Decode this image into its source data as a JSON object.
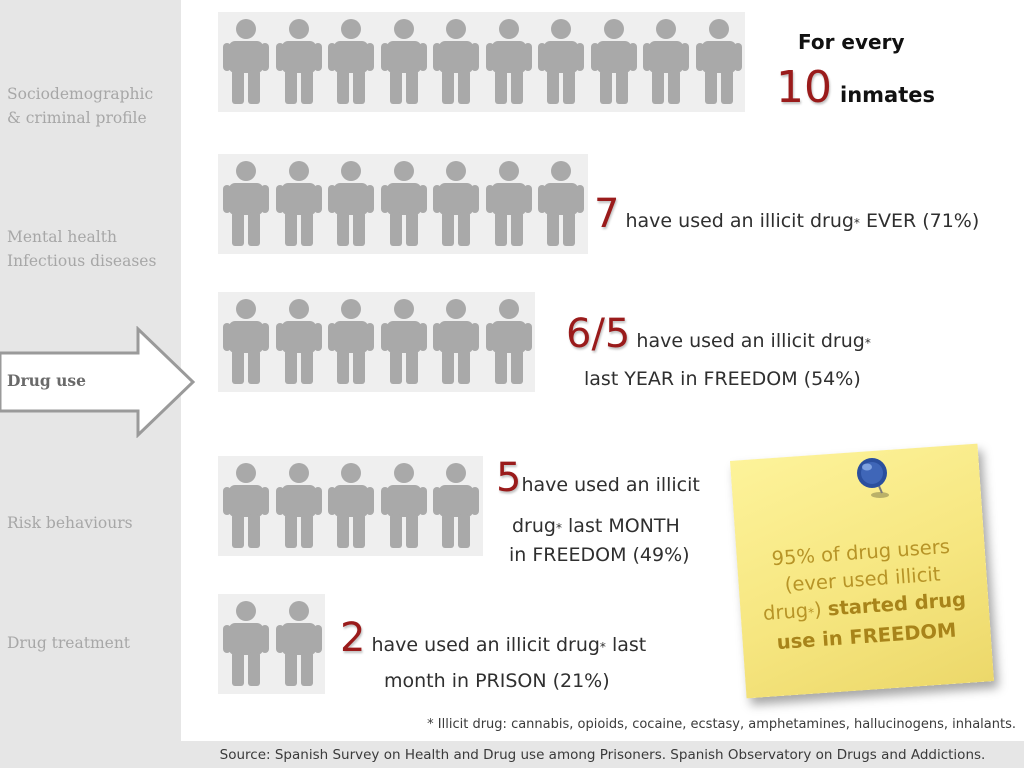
{
  "sidebar": {
    "items": [
      {
        "label": "Sociodemographic\n& criminal profile"
      },
      {
        "label": "Mental health\nInfectious diseases"
      },
      {
        "label": "Drug use"
      },
      {
        "label": "Risk behaviours"
      },
      {
        "label": "Drug treatment"
      }
    ],
    "active_item": "Drug use"
  },
  "header": {
    "for_every": "For every",
    "count": "10",
    "unit": "inmates"
  },
  "rows": [
    {
      "people": 10
    },
    {
      "people": 7,
      "number": "7",
      "text": "have used an illicit drug",
      "asterisk": "*",
      "text_after": " EVER (71%)"
    },
    {
      "people": 6,
      "number": "6/5",
      "text": "have used an illicit drug",
      "asterisk": "*",
      "line2": "last YEAR in FREEDOM (54%)"
    },
    {
      "people": 5,
      "number": "5",
      "text": "have used an illicit",
      "line2_a": "drug",
      "asterisk": "*",
      "line2_b": " last MONTH",
      "line3": "in FREEDOM (49%)"
    },
    {
      "people": 2,
      "number": "2",
      "text": "have used an illicit drug",
      "asterisk": "*",
      "text_after": " last",
      "line2": "month  in PRISON (21%)"
    }
  ],
  "note": {
    "line1": "95% of drug users",
    "line2": "(ever used illicit",
    "line3_a": "drug",
    "asterisk": "*",
    "line3_b": ") ",
    "line3_strong": "started drug",
    "line4_strong": "use in FREEDOM"
  },
  "footnote": "* Illicit drug: cannabis, opioids, cocaine, ecstasy, amphetamines, hallucinogens, inhalants.",
  "source": "Source: Spanish Survey on Health  and Drug use among Prisoners. Spanish Observatory on Drugs and Addictions.",
  "colors": {
    "highlight_number": "#9a1b1b",
    "sidebar_bg": "#e6e6e6",
    "note_bg": "#f6e680",
    "person_icon": "#a9a9a9"
  },
  "icons": {
    "person": "person-icon",
    "arrow": "right-arrow-icon",
    "pin": "push-pin-icon"
  }
}
